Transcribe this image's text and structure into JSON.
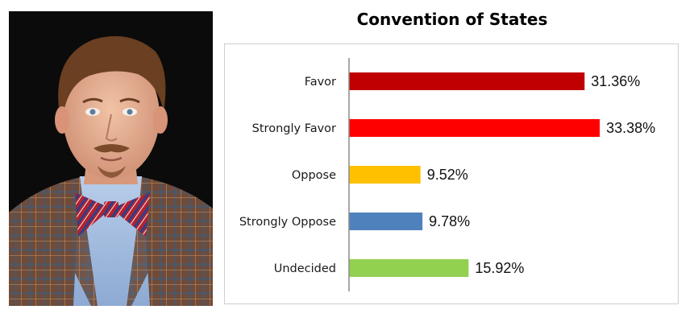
{
  "chart_data": {
    "type": "bar",
    "orientation": "horizontal",
    "title": "Convention of States",
    "categories": [
      "Favor",
      "Strongly Favor",
      "Oppose",
      "Strongly Oppose",
      "Undecided"
    ],
    "values": [
      31.36,
      33.38,
      9.52,
      9.78,
      15.92
    ],
    "value_labels": [
      "31.36%",
      "33.38%",
      "9.52%",
      "9.78%",
      "15.92%"
    ],
    "colors": [
      "#c00000",
      "#ff0000",
      "#ffc000",
      "#4f81bd",
      "#92d050"
    ],
    "xlim": [
      0,
      40
    ],
    "xlabel": "",
    "ylabel": "",
    "grid": false,
    "legend": "none"
  },
  "photo": {
    "icon": "portrait-photo",
    "description_colors": {
      "background": "#0b0b0b",
      "jacket": "#6b4a3a",
      "shirt": "#a9c2e3",
      "bowtie": "#b3212e"
    }
  }
}
